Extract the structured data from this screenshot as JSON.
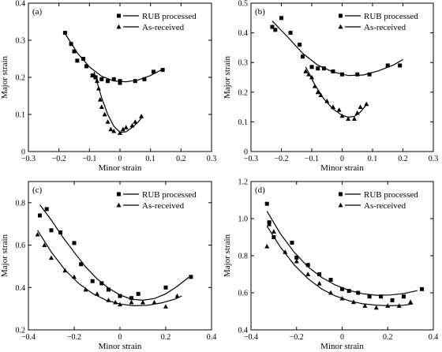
{
  "chart_data": [
    {
      "type": "scatter",
      "panel_label": "(a)",
      "xlabel": "Minor strain",
      "ylabel": "Major strain",
      "xlim": [
        -0.3,
        0.3
      ],
      "ylim": [
        0.0,
        0.4
      ],
      "xticks": [
        "−0.3",
        "−0.2",
        "−0.1",
        "0",
        "0.1",
        "0.2",
        "0.3"
      ],
      "yticks": [
        "0",
        "0.1",
        "0.2",
        "0.3",
        "0.4"
      ],
      "legend": "top-right",
      "series": [
        {
          "name": "RUB processed",
          "marker": "square",
          "points": [
            [
              -0.18,
              0.32
            ],
            [
              -0.16,
              0.29
            ],
            [
              -0.15,
              0.27
            ],
            [
              -0.14,
              0.245
            ],
            [
              -0.12,
              0.25
            ],
            [
              -0.11,
              0.23
            ],
            [
              -0.09,
              0.205
            ],
            [
              -0.08,
              0.2
            ],
            [
              -0.06,
              0.195
            ],
            [
              -0.04,
              0.19
            ],
            [
              -0.02,
              0.195
            ],
            [
              0.0,
              0.19
            ],
            [
              0.0,
              0.185
            ],
            [
              0.05,
              0.19
            ],
            [
              0.08,
              0.195
            ],
            [
              0.11,
              0.215
            ],
            [
              0.14,
              0.22
            ]
          ],
          "fit": [
            [
              -0.18,
              0.318
            ],
            [
              -0.14,
              0.266
            ],
            [
              -0.1,
              0.228
            ],
            [
              -0.06,
              0.203
            ],
            [
              -0.02,
              0.19
            ],
            [
              0.02,
              0.188
            ],
            [
              0.06,
              0.193
            ],
            [
              0.1,
              0.205
            ],
            [
              0.14,
              0.222
            ]
          ]
        },
        {
          "name": "As-received",
          "marker": "triangle",
          "points": [
            [
              -0.08,
              0.2
            ],
            [
              -0.075,
              0.19
            ],
            [
              -0.07,
              0.17
            ],
            [
              -0.065,
              0.14
            ],
            [
              -0.06,
              0.12
            ],
            [
              -0.05,
              0.1
            ],
            [
              -0.04,
              0.08
            ],
            [
              -0.03,
              0.06
            ],
            [
              -0.02,
              0.055
            ],
            [
              0.0,
              0.05
            ],
            [
              0.01,
              0.06
            ],
            [
              0.02,
              0.065
            ],
            [
              0.04,
              0.07
            ],
            [
              0.05,
              0.08
            ],
            [
              0.07,
              0.095
            ]
          ],
          "fit": [
            [
              -0.085,
              0.215
            ],
            [
              -0.06,
              0.145
            ],
            [
              -0.04,
              0.1
            ],
            [
              -0.02,
              0.068
            ],
            [
              0.0,
              0.052
            ],
            [
              0.02,
              0.053
            ],
            [
              0.04,
              0.065
            ],
            [
              0.06,
              0.08
            ],
            [
              0.075,
              0.095
            ]
          ]
        }
      ]
    },
    {
      "type": "scatter",
      "panel_label": "(b)",
      "xlabel": "Minor strain",
      "ylabel": "Major strain",
      "xlim": [
        -0.3,
        0.3
      ],
      "ylim": [
        0.0,
        0.5
      ],
      "xticks": [
        "−0.3",
        "−0.2",
        "−0.1",
        "0",
        "0.1",
        "0.2",
        "0.3"
      ],
      "yticks": [
        "0",
        "0.1",
        "0.2",
        "0.3",
        "0.4",
        "0.5"
      ],
      "legend": "top-right",
      "series": [
        {
          "name": "RUB processed",
          "marker": "square",
          "points": [
            [
              -0.23,
              0.42
            ],
            [
              -0.22,
              0.41
            ],
            [
              -0.2,
              0.45
            ],
            [
              -0.17,
              0.4
            ],
            [
              -0.14,
              0.36
            ],
            [
              -0.13,
              0.32
            ],
            [
              -0.1,
              0.285
            ],
            [
              -0.08,
              0.28
            ],
            [
              -0.06,
              0.28
            ],
            [
              -0.03,
              0.27
            ],
            [
              0.0,
              0.26
            ],
            [
              0.05,
              0.26
            ],
            [
              0.09,
              0.26
            ],
            [
              0.15,
              0.29
            ],
            [
              0.19,
              0.29
            ]
          ],
          "fit": [
            [
              -0.23,
              0.44
            ],
            [
              -0.18,
              0.387
            ],
            [
              -0.13,
              0.331
            ],
            [
              -0.08,
              0.291
            ],
            [
              -0.03,
              0.268
            ],
            [
              0.02,
              0.256
            ],
            [
              0.07,
              0.258
            ],
            [
              0.12,
              0.272
            ],
            [
              0.17,
              0.292
            ],
            [
              0.2,
              0.31
            ]
          ]
        },
        {
          "name": "As-received",
          "marker": "triangle",
          "points": [
            [
              -0.12,
              0.27
            ],
            [
              -0.11,
              0.26
            ],
            [
              -0.1,
              0.25
            ],
            [
              -0.09,
              0.22
            ],
            [
              -0.08,
              0.2
            ],
            [
              -0.07,
              0.19
            ],
            [
              -0.05,
              0.17
            ],
            [
              -0.03,
              0.15
            ],
            [
              -0.01,
              0.14
            ],
            [
              0.0,
              0.12
            ],
            [
              0.02,
              0.11
            ],
            [
              0.04,
              0.11
            ],
            [
              0.05,
              0.13
            ],
            [
              0.06,
              0.15
            ],
            [
              0.08,
              0.16
            ]
          ],
          "fit": [
            [
              -0.12,
              0.285
            ],
            [
              -0.09,
              0.225
            ],
            [
              -0.06,
              0.177
            ],
            [
              -0.03,
              0.143
            ],
            [
              0.0,
              0.122
            ],
            [
              0.02,
              0.116
            ],
            [
              0.04,
              0.118
            ],
            [
              0.06,
              0.133
            ],
            [
              0.08,
              0.158
            ]
          ]
        }
      ]
    },
    {
      "type": "scatter",
      "panel_label": "(c)",
      "xlabel": "Minor strain",
      "ylabel": "Major strain",
      "xlim": [
        -0.4,
        0.4
      ],
      "ylim": [
        0.2,
        0.9
      ],
      "xticks": [
        "−0.4",
        "−0.2",
        "0",
        "0.2",
        "0.4"
      ],
      "yticks": [
        "0.2",
        "0.4",
        "0.6",
        "0.8"
      ],
      "legend": "top-right",
      "series": [
        {
          "name": "RUB processed",
          "marker": "square",
          "points": [
            [
              -0.35,
              0.74
            ],
            [
              -0.32,
              0.77
            ],
            [
              -0.3,
              0.67
            ],
            [
              -0.26,
              0.66
            ],
            [
              -0.2,
              0.61
            ],
            [
              -0.17,
              0.51
            ],
            [
              -0.12,
              0.43
            ],
            [
              -0.08,
              0.42
            ],
            [
              -0.05,
              0.39
            ],
            [
              0.0,
              0.36
            ],
            [
              0.05,
              0.35
            ],
            [
              0.08,
              0.37
            ],
            [
              0.2,
              0.4
            ],
            [
              0.31,
              0.45
            ]
          ],
          "fit": [
            [
              -0.35,
              0.79
            ],
            [
              -0.3,
              0.718
            ],
            [
              -0.25,
              0.638
            ],
            [
              -0.2,
              0.566
            ],
            [
              -0.15,
              0.497
            ],
            [
              -0.1,
              0.441
            ],
            [
              -0.05,
              0.397
            ],
            [
              0.0,
              0.365
            ],
            [
              0.05,
              0.345
            ],
            [
              0.1,
              0.34
            ],
            [
              0.15,
              0.348
            ],
            [
              0.2,
              0.37
            ],
            [
              0.25,
              0.405
            ],
            [
              0.3,
              0.448
            ]
          ]
        },
        {
          "name": "As-received",
          "marker": "triangle",
          "points": [
            [
              -0.36,
              0.65
            ],
            [
              -0.33,
              0.6
            ],
            [
              -0.3,
              0.54
            ],
            [
              -0.24,
              0.48
            ],
            [
              -0.2,
              0.45
            ],
            [
              -0.15,
              0.39
            ],
            [
              -0.1,
              0.37
            ],
            [
              -0.05,
              0.34
            ],
            [
              -0.02,
              0.33
            ],
            [
              0.0,
              0.32
            ],
            [
              0.05,
              0.33
            ],
            [
              0.1,
              0.33
            ],
            [
              0.15,
              0.33
            ],
            [
              0.2,
              0.31
            ],
            [
              0.25,
              0.36
            ]
          ],
          "fit": [
            [
              -0.36,
              0.67
            ],
            [
              -0.3,
              0.567
            ],
            [
              -0.24,
              0.483
            ],
            [
              -0.18,
              0.419
            ],
            [
              -0.12,
              0.372
            ],
            [
              -0.06,
              0.34
            ],
            [
              0.0,
              0.322
            ],
            [
              0.06,
              0.314
            ],
            [
              0.12,
              0.316
            ],
            [
              0.18,
              0.327
            ],
            [
              0.24,
              0.345
            ],
            [
              0.27,
              0.36
            ]
          ]
        }
      ]
    },
    {
      "type": "scatter",
      "panel_label": "(d)",
      "xlabel": "Minor strain",
      "ylabel": "Major strain",
      "xlim": [
        -0.4,
        0.4
      ],
      "ylim": [
        0.4,
        1.2
      ],
      "xticks": [
        "−0.4",
        "−0.2",
        "0",
        "0.2",
        "0.4"
      ],
      "yticks": [
        "0.4",
        "0.6",
        "0.8",
        "1.0",
        "1.2"
      ],
      "legend": "top-right",
      "series": [
        {
          "name": "RUB processed",
          "marker": "square",
          "points": [
            [
              -0.33,
              1.08
            ],
            [
              -0.32,
              0.98
            ],
            [
              -0.3,
              0.9
            ],
            [
              -0.22,
              0.87
            ],
            [
              -0.2,
              0.79
            ],
            [
              -0.15,
              0.75
            ],
            [
              -0.1,
              0.7
            ],
            [
              -0.05,
              0.67
            ],
            [
              0.0,
              0.62
            ],
            [
              0.03,
              0.61
            ],
            [
              0.07,
              0.6
            ],
            [
              0.12,
              0.58
            ],
            [
              0.17,
              0.58
            ],
            [
              0.22,
              0.56
            ],
            [
              0.27,
              0.58
            ],
            [
              0.35,
              0.62
            ]
          ],
          "fit": [
            [
              -0.33,
              1.04
            ],
            [
              -0.27,
              0.917
            ],
            [
              -0.21,
              0.818
            ],
            [
              -0.15,
              0.74
            ],
            [
              -0.09,
              0.683
            ],
            [
              -0.03,
              0.642
            ],
            [
              0.03,
              0.613
            ],
            [
              0.09,
              0.595
            ],
            [
              0.15,
              0.587
            ],
            [
              0.21,
              0.588
            ],
            [
              0.27,
              0.596
            ],
            [
              0.33,
              0.612
            ]
          ]
        },
        {
          "name": "As-received",
          "marker": "triangle",
          "points": [
            [
              -0.33,
              0.85
            ],
            [
              -0.32,
              0.97
            ],
            [
              -0.3,
              0.93
            ],
            [
              -0.25,
              0.82
            ],
            [
              -0.2,
              0.77
            ],
            [
              -0.15,
              0.7
            ],
            [
              -0.1,
              0.65
            ],
            [
              -0.05,
              0.6
            ],
            [
              0.0,
              0.57
            ],
            [
              0.05,
              0.55
            ],
            [
              0.1,
              0.53
            ],
            [
              0.15,
              0.52
            ],
            [
              0.2,
              0.53
            ],
            [
              0.25,
              0.53
            ],
            [
              0.3,
              0.55
            ]
          ],
          "fit": [
            [
              -0.33,
              0.96
            ],
            [
              -0.27,
              0.845
            ],
            [
              -0.21,
              0.75
            ],
            [
              -0.15,
              0.676
            ],
            [
              -0.09,
              0.621
            ],
            [
              -0.03,
              0.583
            ],
            [
              0.03,
              0.557
            ],
            [
              0.09,
              0.541
            ],
            [
              0.15,
              0.533
            ],
            [
              0.21,
              0.53
            ],
            [
              0.27,
              0.533
            ],
            [
              0.31,
              0.54
            ]
          ]
        }
      ]
    }
  ]
}
